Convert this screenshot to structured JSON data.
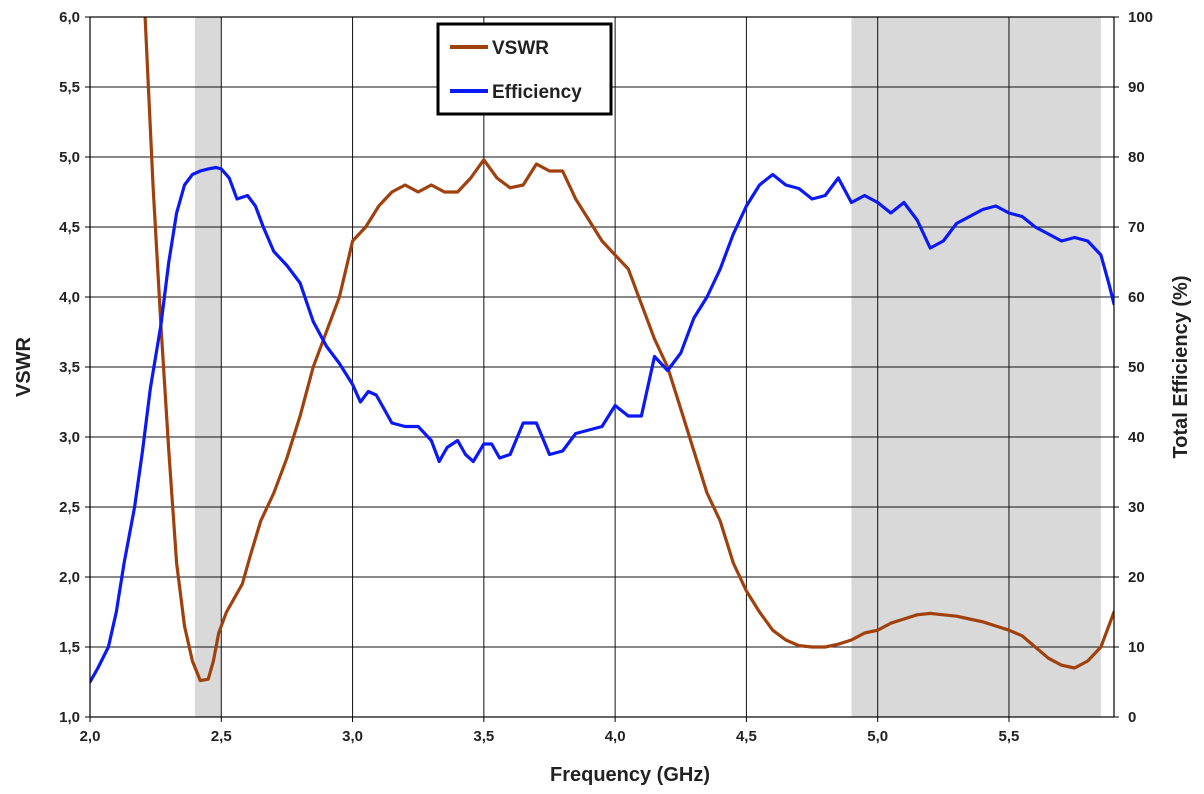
{
  "chart_data": {
    "type": "line",
    "title": "",
    "xlabel": "Frequency (GHz)",
    "ylabel": "VSWR",
    "y2label": "Total Efficiency (%)",
    "xlim": [
      2.0,
      5.9
    ],
    "ylim": [
      1.0,
      6.0
    ],
    "y2lim": [
      0,
      100
    ],
    "x_ticks": [
      "2,0",
      "2,5",
      "3,0",
      "3,5",
      "4,0",
      "4,5",
      "5,0",
      "5,5"
    ],
    "y_ticks": [
      "1,0",
      "1,5",
      "2,0",
      "2,5",
      "3,0",
      "3,5",
      "4,0",
      "4,5",
      "5,0",
      "5,5",
      "6,0"
    ],
    "y2_ticks": [
      "0",
      "10",
      "20",
      "30",
      "40",
      "50",
      "60",
      "70",
      "80",
      "90",
      "100"
    ],
    "grid": true,
    "legend_position": "top-center",
    "shaded_bands": [
      [
        2.4,
        2.5
      ],
      [
        4.9,
        5.85
      ]
    ],
    "band_color": "#d9d9d9",
    "series": [
      {
        "name": "VSWR",
        "axis": "left",
        "color": "#a0410d",
        "x": [
          2.21,
          2.24,
          2.27,
          2.3,
          2.33,
          2.36,
          2.39,
          2.42,
          2.45,
          2.47,
          2.49,
          2.52,
          2.55,
          2.58,
          2.61,
          2.65,
          2.7,
          2.75,
          2.8,
          2.85,
          2.9,
          2.95,
          3.0,
          3.05,
          3.1,
          3.15,
          3.2,
          3.25,
          3.3,
          3.35,
          3.4,
          3.45,
          3.5,
          3.55,
          3.6,
          3.65,
          3.7,
          3.75,
          3.8,
          3.85,
          3.9,
          3.95,
          4.0,
          4.05,
          4.1,
          4.15,
          4.2,
          4.25,
          4.3,
          4.35,
          4.4,
          4.45,
          4.5,
          4.55,
          4.6,
          4.65,
          4.7,
          4.75,
          4.8,
          4.85,
          4.9,
          4.95,
          5.0,
          5.05,
          5.1,
          5.15,
          5.2,
          5.25,
          5.3,
          5.35,
          5.4,
          5.45,
          5.5,
          5.55,
          5.6,
          5.65,
          5.7,
          5.75,
          5.8,
          5.85,
          5.9
        ],
        "values": [
          6.0,
          4.8,
          3.8,
          2.9,
          2.1,
          1.65,
          1.4,
          1.26,
          1.27,
          1.4,
          1.6,
          1.75,
          1.85,
          1.95,
          2.15,
          2.4,
          2.6,
          2.85,
          3.15,
          3.5,
          3.75,
          4.0,
          4.4,
          4.5,
          4.65,
          4.75,
          4.8,
          4.75,
          4.8,
          4.75,
          4.75,
          4.85,
          4.98,
          4.85,
          4.78,
          4.8,
          4.95,
          4.9,
          4.9,
          4.7,
          4.55,
          4.4,
          4.3,
          4.2,
          3.95,
          3.7,
          3.5,
          3.2,
          2.9,
          2.6,
          2.4,
          2.1,
          1.9,
          1.75,
          1.62,
          1.55,
          1.51,
          1.5,
          1.5,
          1.52,
          1.55,
          1.6,
          1.62,
          1.67,
          1.7,
          1.73,
          1.74,
          1.73,
          1.72,
          1.7,
          1.68,
          1.65,
          1.62,
          1.58,
          1.5,
          1.42,
          1.37,
          1.35,
          1.4,
          1.5,
          1.75
        ]
      },
      {
        "name": "Efficiency",
        "axis": "right",
        "color": "#0a19f5",
        "x": [
          2.0,
          2.03,
          2.07,
          2.1,
          2.13,
          2.17,
          2.2,
          2.23,
          2.27,
          2.3,
          2.33,
          2.36,
          2.39,
          2.42,
          2.45,
          2.48,
          2.5,
          2.53,
          2.56,
          2.6,
          2.63,
          2.66,
          2.7,
          2.75,
          2.8,
          2.85,
          2.9,
          2.95,
          3.0,
          3.03,
          3.06,
          3.09,
          3.12,
          3.15,
          3.2,
          3.25,
          3.3,
          3.33,
          3.36,
          3.4,
          3.43,
          3.46,
          3.5,
          3.53,
          3.56,
          3.6,
          3.65,
          3.7,
          3.75,
          3.8,
          3.85,
          3.9,
          3.95,
          4.0,
          4.05,
          4.1,
          4.15,
          4.2,
          4.25,
          4.3,
          4.35,
          4.4,
          4.45,
          4.5,
          4.55,
          4.6,
          4.65,
          4.7,
          4.75,
          4.8,
          4.85,
          4.9,
          4.95,
          5.0,
          5.05,
          5.1,
          5.15,
          5.2,
          5.25,
          5.3,
          5.35,
          5.4,
          5.45,
          5.5,
          5.55,
          5.6,
          5.65,
          5.7,
          5.75,
          5.8,
          5.85,
          5.88,
          5.9
        ],
        "values": [
          5,
          7,
          10,
          15,
          22,
          30,
          38,
          47,
          56,
          65,
          72,
          76,
          77.5,
          78,
          78.3,
          78.5,
          78.3,
          77,
          74,
          74.5,
          73,
          70,
          66.5,
          64.5,
          62,
          56.5,
          53,
          50.5,
          47.5,
          45,
          46.5,
          46,
          44,
          42,
          41.5,
          41.5,
          39.5,
          36.5,
          38.5,
          39.5,
          37.5,
          36.5,
          39,
          39,
          37,
          37.5,
          42,
          42,
          37.5,
          38,
          40.5,
          41,
          41.5,
          44.5,
          43,
          43,
          51.5,
          49.5,
          52,
          57,
          60,
          64,
          69,
          73,
          76,
          77.5,
          76,
          75.5,
          74,
          74.5,
          77,
          73.5,
          74.5,
          73.5,
          72,
          73.5,
          71,
          67,
          68,
          70.5,
          71.5,
          72.5,
          73,
          72,
          71.5,
          70,
          69,
          68,
          68.5,
          68,
          66,
          62,
          59
        ]
      }
    ]
  }
}
